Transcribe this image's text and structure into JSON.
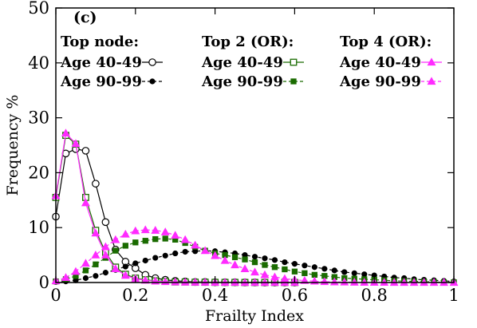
{
  "chart_data": {
    "type": "line",
    "panel_label": "(c)",
    "xlabel": "Frailty Index",
    "ylabel": "Frequency %",
    "xlim": [
      0,
      1
    ],
    "ylim": [
      0,
      50
    ],
    "xticks": [
      0,
      0.2,
      0.4,
      0.6,
      0.8,
      1
    ],
    "xtick_labels": [
      "0",
      "0.2",
      "0.4",
      "0.6",
      "0.8",
      "1"
    ],
    "yticks": [
      0,
      10,
      20,
      30,
      40,
      50
    ],
    "ytick_labels": [
      "0",
      "10",
      "20",
      "30",
      "40",
      "50"
    ],
    "grid": false,
    "legend_position": "top",
    "legend_groups": [
      {
        "header": "Top node:",
        "entries": [
          "Age 40-49",
          "Age 90-99"
        ]
      },
      {
        "header": "Top 2 (OR):",
        "entries": [
          "Age 40-49",
          "Age 90-99"
        ]
      },
      {
        "header": "Top 4 (OR):",
        "entries": [
          "Age 40-49",
          "Age 90-99"
        ]
      }
    ],
    "series": [
      {
        "name": "Age 40-49",
        "group": 0,
        "color": "#000000",
        "marker": "circle-open",
        "dashed": false,
        "x": [
          0,
          0.025,
          0.05,
          0.075,
          0.1,
          0.125,
          0.15,
          0.175,
          0.2,
          0.225,
          0.25,
          0.275,
          0.3,
          0.325,
          0.35,
          0.375,
          0.4,
          0.425,
          0.45,
          0.475,
          0.5,
          0.525,
          0.55,
          0.575,
          0.6
        ],
        "y": [
          12,
          23.5,
          24.3,
          24,
          18,
          11,
          6,
          3.8,
          2.6,
          1.4,
          0.8,
          0.5,
          0.3,
          0.2,
          0.1,
          0.1,
          0.05,
          0.05,
          0.05,
          0.02,
          0.02,
          0.01,
          0.01,
          0.01,
          0.01
        ]
      },
      {
        "name": "Age 90-99",
        "group": 0,
        "color": "#000000",
        "marker": "circle-filled",
        "dashed": true,
        "x": [
          0,
          0.025,
          0.05,
          0.075,
          0.1,
          0.125,
          0.15,
          0.175,
          0.2,
          0.225,
          0.25,
          0.275,
          0.3,
          0.325,
          0.35,
          0.375,
          0.4,
          0.425,
          0.45,
          0.475,
          0.5,
          0.525,
          0.55,
          0.575,
          0.6,
          0.625,
          0.65,
          0.675,
          0.7,
          0.725,
          0.75,
          0.775,
          0.8,
          0.825,
          0.85,
          0.875,
          0.9,
          0.925,
          0.95,
          0.975,
          1
        ],
        "y": [
          0.1,
          0.2,
          0.4,
          0.8,
          1.2,
          1.8,
          2.3,
          2.9,
          3.5,
          4.0,
          4.5,
          4.9,
          5.3,
          5.6,
          5.7,
          5.8,
          5.7,
          5.5,
          5.3,
          5.0,
          4.7,
          4.4,
          4.1,
          3.7,
          3.4,
          3.1,
          2.8,
          2.5,
          2.2,
          1.9,
          1.7,
          1.5,
          1.3,
          1.1,
          0.9,
          0.8,
          0.6,
          0.5,
          0.4,
          0.3,
          0.2
        ]
      },
      {
        "name": "Age 40-49",
        "group": 1,
        "color": "#1a6b00",
        "marker": "square-open",
        "dashed": false,
        "x": [
          0,
          0.025,
          0.05,
          0.075,
          0.1,
          0.125,
          0.15,
          0.175,
          0.2,
          0.225,
          0.25,
          0.275,
          0.3,
          0.325,
          0.35,
          0.375,
          0.4,
          0.425,
          0.45,
          0.475,
          0.5,
          0.525,
          0.55,
          0.575,
          0.6
        ],
        "y": [
          15.5,
          26.8,
          25.2,
          15.5,
          9.5,
          5.5,
          2.8,
          1.5,
          0.8,
          0.5,
          0.3,
          0.2,
          0.1,
          0.1,
          0.05,
          0.05,
          0.03,
          0.02,
          0.02,
          0.01,
          0.01,
          0.01,
          0.01,
          0.01,
          0.01
        ]
      },
      {
        "name": "Age 90-99",
        "group": 1,
        "color": "#1a6b00",
        "marker": "square-filled",
        "dashed": true,
        "x": [
          0,
          0.025,
          0.05,
          0.075,
          0.1,
          0.125,
          0.15,
          0.175,
          0.2,
          0.225,
          0.25,
          0.275,
          0.3,
          0.325,
          0.35,
          0.375,
          0.4,
          0.425,
          0.45,
          0.475,
          0.5,
          0.525,
          0.55,
          0.575,
          0.6,
          0.625,
          0.65,
          0.675,
          0.7,
          0.725,
          0.75,
          0.775,
          0.8,
          0.825,
          0.85,
          0.875,
          0.9,
          0.925,
          0.95,
          0.975,
          1
        ],
        "y": [
          0.2,
          0.6,
          1.2,
          2.2,
          3.3,
          4.5,
          5.8,
          6.7,
          7.3,
          7.6,
          7.9,
          8.0,
          7.8,
          7.2,
          6.5,
          5.8,
          5.3,
          5.0,
          4.6,
          4.2,
          3.7,
          3.2,
          2.8,
          2.4,
          2.0,
          1.7,
          1.4,
          1.2,
          1.0,
          0.8,
          0.7,
          0.6,
          0.5,
          0.4,
          0.3,
          0.25,
          0.2,
          0.15,
          0.1,
          0.05,
          0.05
        ]
      },
      {
        "name": "Age 40-49",
        "group": 2,
        "color": "#ff2bff",
        "marker": "triangle-filled",
        "dashed": false,
        "x": [
          0,
          0.025,
          0.05,
          0.075,
          0.1,
          0.125,
          0.15,
          0.175,
          0.2,
          0.225,
          0.25,
          0.275,
          0.3,
          0.325,
          0.35,
          0.375,
          0.4,
          0.425,
          0.45,
          0.475,
          0.5,
          0.525,
          0.55,
          0.575,
          0.6
        ],
        "y": [
          15.8,
          27.2,
          25.3,
          14.5,
          9.0,
          5.0,
          2.5,
          1.3,
          0.7,
          0.4,
          0.25,
          0.15,
          0.1,
          0.07,
          0.05,
          0.04,
          0.03,
          0.02,
          0.02,
          0.01,
          0.01,
          0.01,
          0.01,
          0.01,
          0.01
        ]
      },
      {
        "name": "Age 90-99",
        "group": 2,
        "color": "#ff2bff",
        "marker": "triangle-filled",
        "dashed": true,
        "x": [
          0,
          0.025,
          0.05,
          0.075,
          0.1,
          0.125,
          0.15,
          0.175,
          0.2,
          0.225,
          0.25,
          0.275,
          0.3,
          0.325,
          0.35,
          0.375,
          0.4,
          0.425,
          0.45,
          0.475,
          0.5,
          0.525,
          0.55,
          0.575,
          0.6,
          0.625,
          0.65,
          0.675,
          0.7,
          0.725,
          0.75,
          0.775,
          0.8,
          0.825,
          0.85,
          0.875,
          0.9,
          0.925,
          0.95,
          0.975,
          1
        ],
        "y": [
          0.3,
          0.9,
          2.0,
          3.5,
          5.0,
          6.5,
          7.8,
          8.8,
          9.4,
          9.6,
          9.5,
          9.2,
          8.6,
          7.8,
          6.8,
          5.8,
          4.9,
          4.0,
          3.2,
          2.5,
          1.9,
          1.4,
          1.0,
          0.7,
          0.5,
          0.35,
          0.25,
          0.15,
          0.1,
          0.08,
          0.05,
          0.03,
          0.02,
          0.02,
          0.01,
          0.01,
          0.01,
          0.01,
          0.01,
          0.01,
          0.01
        ]
      }
    ]
  }
}
